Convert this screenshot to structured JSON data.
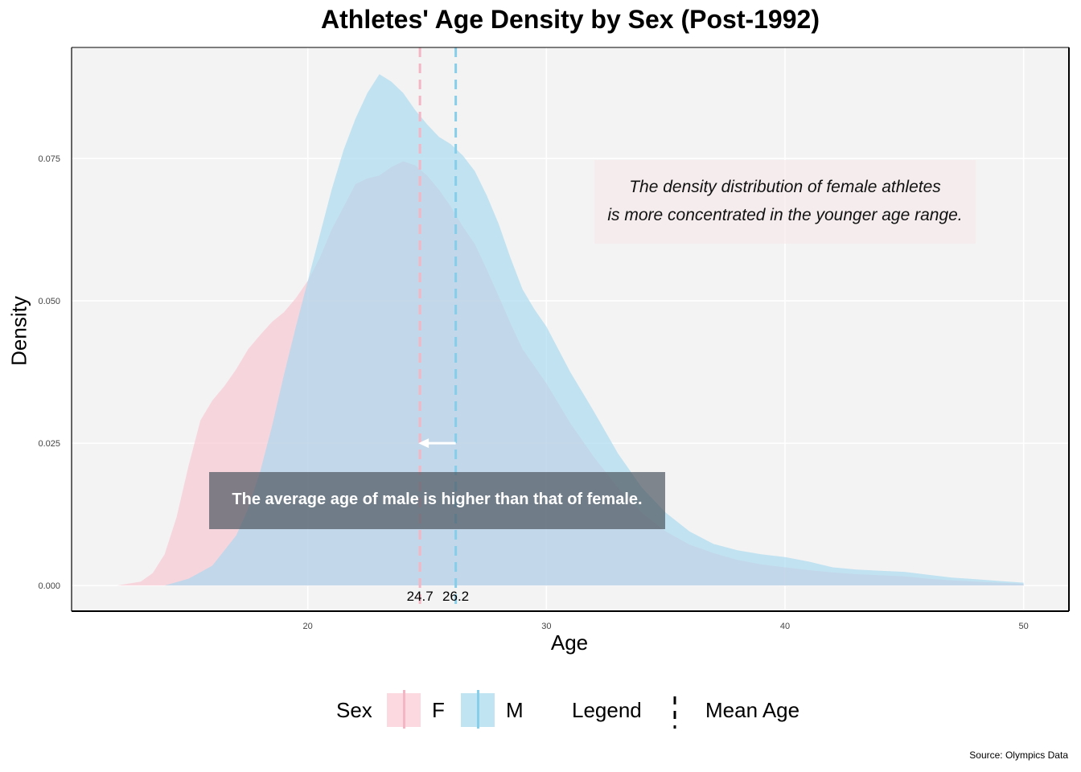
{
  "chart_data": {
    "type": "area",
    "title": "Athletes' Age Density by Sex (Post-1992)",
    "xlabel": "Age",
    "ylabel": "Density",
    "xlim": [
      10.1,
      51.9
    ],
    "ylim": [
      -0.0045,
      0.0945
    ],
    "x_ticks": [
      20,
      30,
      40,
      50
    ],
    "x_tick_labels": [
      "20",
      "30",
      "40",
      "50"
    ],
    "y_ticks": [
      0.0,
      0.025,
      0.05,
      0.075
    ],
    "y_tick_labels": [
      "0.000",
      "0.025",
      "0.050",
      "0.075"
    ],
    "grid": true,
    "legend_position": "bottom",
    "series": [
      {
        "name": "F",
        "color": "#f9c5d1",
        "mean": 24.7,
        "mean_label": "24.7",
        "x": [
          12,
          13,
          13.5,
          14,
          14.5,
          15,
          15.5,
          16,
          16.5,
          17,
          17.5,
          18,
          18.5,
          19,
          19.5,
          20,
          20.5,
          21,
          21.5,
          22,
          22.5,
          23,
          23.5,
          24,
          24.5,
          25,
          25.5,
          26,
          26.5,
          27,
          27.5,
          28,
          28.5,
          29,
          30,
          31,
          32,
          33,
          34,
          35,
          36,
          37,
          38,
          39,
          40,
          41,
          42,
          43,
          44,
          45,
          46,
          47,
          48,
          49,
          50
        ],
        "y": [
          0.0,
          0.0007,
          0.0022,
          0.0055,
          0.012,
          0.021,
          0.029,
          0.0325,
          0.035,
          0.038,
          0.0415,
          0.044,
          0.0463,
          0.048,
          0.0505,
          0.0535,
          0.0575,
          0.0625,
          0.0665,
          0.0705,
          0.0715,
          0.072,
          0.0735,
          0.0745,
          0.0738,
          0.072,
          0.0695,
          0.0665,
          0.063,
          0.06,
          0.0555,
          0.0508,
          0.046,
          0.0415,
          0.0355,
          0.0285,
          0.0225,
          0.0172,
          0.0128,
          0.0095,
          0.0072,
          0.0057,
          0.0045,
          0.0037,
          0.0032,
          0.0027,
          0.0023,
          0.002,
          0.0018,
          0.0016,
          0.0012,
          0.0009,
          0.0007,
          0.0005,
          0.0003
        ]
      },
      {
        "name": "M",
        "color": "#a6d8ef",
        "mean": 26.2,
        "mean_label": "26.2",
        "x": [
          14,
          15,
          16,
          17,
          17.5,
          18,
          18.5,
          19,
          19.5,
          20,
          20.5,
          21,
          21.5,
          22,
          22.5,
          23,
          23.5,
          24,
          24.5,
          25,
          25.5,
          26,
          26.5,
          27,
          27.5,
          28,
          28.5,
          29,
          29.5,
          30,
          31,
          32,
          33,
          34,
          35,
          36,
          37,
          38,
          39,
          40,
          41,
          42,
          43,
          44,
          45,
          46,
          47,
          48,
          49,
          50
        ],
        "y": [
          0.0,
          0.0012,
          0.0035,
          0.0088,
          0.0135,
          0.02,
          0.028,
          0.037,
          0.0455,
          0.0535,
          0.0615,
          0.0695,
          0.0765,
          0.082,
          0.0865,
          0.0898,
          0.0885,
          0.0865,
          0.0835,
          0.081,
          0.0788,
          0.0775,
          0.0755,
          0.0728,
          0.0685,
          0.0635,
          0.0575,
          0.052,
          0.0485,
          0.0455,
          0.0375,
          0.0305,
          0.0232,
          0.0172,
          0.0128,
          0.0095,
          0.0073,
          0.0062,
          0.0055,
          0.005,
          0.0042,
          0.0032,
          0.0028,
          0.0026,
          0.0024,
          0.0019,
          0.0014,
          0.0011,
          0.0008,
          0.0005
        ]
      }
    ],
    "annotations": {
      "note_line1": "The density distribution of female athletes",
      "note_line2": "is more concentrated in the younger age range.",
      "callout": "The average age of male is higher than that of female."
    },
    "legend": {
      "sex_title": "Sex",
      "f_label": "F",
      "m_label": "M",
      "line_title": "Legend",
      "line_label": "Mean Age"
    },
    "source": "Source: Olympics Data"
  }
}
